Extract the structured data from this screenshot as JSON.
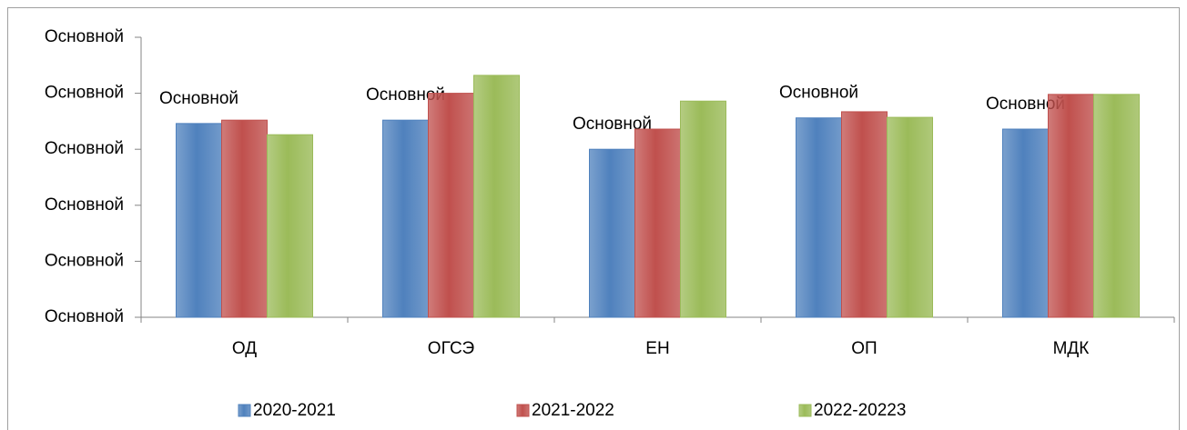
{
  "chart_data": {
    "type": "bar",
    "categories": [
      "ОД",
      "ОГСЭ",
      "ЕН",
      "ОП",
      "МДК"
    ],
    "series": [
      {
        "name": "2020-2021",
        "color": "#4f81bd",
        "values": [
          3.46,
          3.52,
          3.0,
          3.56,
          3.36
        ],
        "value_labels": [
          "Основной",
          "Основной",
          "Основной",
          "Основной",
          "Основной"
        ]
      },
      {
        "name": "2021-2022",
        "color": "#c0504d",
        "values": [
          3.52,
          4.0,
          3.36,
          3.67,
          3.98
        ]
      },
      {
        "name": "2022-20223",
        "color": "#9bbb59",
        "values": [
          3.26,
          4.32,
          3.86,
          3.57,
          3.98
        ]
      }
    ],
    "ylim": [
      0,
      5
    ],
    "yticks": [
      {
        "value": 0,
        "label": "Основной"
      },
      {
        "value": 1,
        "label": "Основной"
      },
      {
        "value": 2,
        "label": "Основной"
      },
      {
        "value": 3,
        "label": "Основной"
      },
      {
        "value": 4,
        "label": "Основной"
      },
      {
        "value": 5,
        "label": "Основной"
      }
    ],
    "legend": "bottom"
  }
}
